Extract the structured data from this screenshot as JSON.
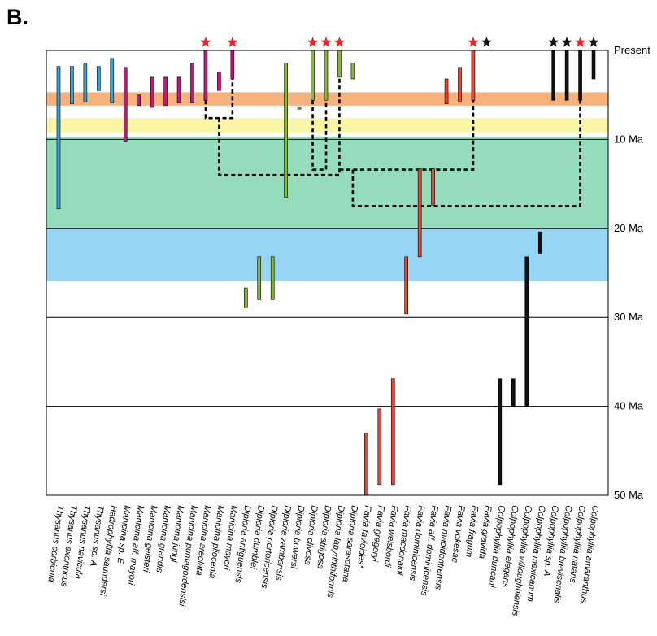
{
  "panel_label": "B.",
  "chart_data": {
    "type": "range-chart",
    "y_axis": {
      "unit": "Ma",
      "range": [
        0,
        50
      ],
      "ticks": [
        {
          "value": 0,
          "label": "Present"
        },
        {
          "value": 10,
          "label": "10 Ma"
        },
        {
          "value": 20,
          "label": "20 Ma"
        },
        {
          "value": 30,
          "label": "30 Ma"
        },
        {
          "value": 40,
          "label": "40 Ma"
        },
        {
          "value": 50,
          "label": "50 Ma"
        }
      ]
    },
    "bands": [
      {
        "from": 4.7,
        "to": 6.2,
        "color": "#f7b27b"
      },
      {
        "from": 7.6,
        "to": 9.2,
        "color": "#fbf6a6"
      },
      {
        "from": 9.7,
        "to": 19.9,
        "color": "#94dcbb"
      },
      {
        "from": 19.9,
        "to": 25.9,
        "color": "#96d6f4"
      }
    ],
    "colors": {
      "Thysanus": "#3fa1d6",
      "Hadrophyllia": "#3fa1d6",
      "Manicina": "#c8157e",
      "Diploria": "#86b540",
      "Favia": "#e24a33",
      "Colpophyllia": "#111111",
      "red_star": "#ee2222",
      "black_star": "#111111"
    },
    "taxa": [
      {
        "name": "Thysanus corbicula",
        "group": "Thysanus",
        "top": 1.8,
        "bottom": 17.8
      },
      {
        "name": "Thysanus exentricus",
        "group": "Thysanus",
        "top": 1.8,
        "bottom": 6.0
      },
      {
        "name": "Thysanus navicula",
        "group": "Thysanus",
        "top": 1.4,
        "bottom": 5.8
      },
      {
        "name": "Thysanus sp. A",
        "group": "Thysanus",
        "top": 1.8,
        "bottom": 4.5
      },
      {
        "name": "Hadrophyllia saundersi",
        "group": "Hadrophyllia",
        "top": 0.9,
        "bottom": 5.9
      },
      {
        "name": "Manicina sp. E",
        "group": "Manicina",
        "top": 1.9,
        "bottom": 10.2
      },
      {
        "name": "Manicina aff. mayori",
        "group": "Manicina",
        "top": 5.0,
        "bottom": 6.2
      },
      {
        "name": "Manicina geisteri",
        "group": "Manicina",
        "top": 3.0,
        "bottom": 6.4
      },
      {
        "name": "Manicina grandis",
        "group": "Manicina",
        "top": 3.0,
        "bottom": 6.2
      },
      {
        "name": "Manicina jungi",
        "group": "Manicina",
        "top": 3.0,
        "bottom": 5.9
      },
      {
        "name": "Manicina puntagordensisi",
        "group": "Manicina",
        "top": 1.4,
        "bottom": 5.9
      },
      {
        "name": "Manicina areolata",
        "group": "Manicina",
        "top": 0.0,
        "bottom": 5.6
      },
      {
        "name": "Manicina pliocenia",
        "group": "Manicina",
        "top": 2.4,
        "bottom": 4.5
      },
      {
        "name": "Manicina mayori",
        "group": "Manicina",
        "top": 0.0,
        "bottom": 3.2
      },
      {
        "name": "Diploria antiguensis",
        "group": "Diploria",
        "top": 26.7,
        "bottom": 28.9
      },
      {
        "name": "Diploria dumblei",
        "group": "Diploria",
        "top": 23.2,
        "bottom": 28.0
      },
      {
        "name": "Diploria portoricensis",
        "group": "Diploria",
        "top": 23.2,
        "bottom": 28.0
      },
      {
        "name": "Diploria zambensis",
        "group": "Diploria",
        "top": 1.4,
        "bottom": 16.5
      },
      {
        "name": "Diploria bowersi",
        "group": "Diploria",
        "top": 6.4,
        "bottom": 6.6
      },
      {
        "name": "Diploria clivosa",
        "group": "Diploria",
        "top": 0.0,
        "bottom": 5.6
      },
      {
        "name": "Diploria strigosa",
        "group": "Diploria",
        "top": 0.0,
        "bottom": 5.6
      },
      {
        "name": "Diploria labyrinthiformis",
        "group": "Diploria",
        "top": 0.0,
        "bottom": 3.0
      },
      {
        "name": "Diploria sarasotana",
        "group": "Diploria",
        "top": 1.4,
        "bottom": 3.2
      },
      {
        "name": "Favia favioides*",
        "group": "Favia",
        "top": 43.0,
        "bottom": 50.0
      },
      {
        "name": "Favia gregoryi",
        "group": "Favia",
        "top": 40.3,
        "bottom": 48.8
      },
      {
        "name": "Favia weisbordi",
        "group": "Favia",
        "top": 36.9,
        "bottom": 48.8
      },
      {
        "name": "Favia macdonaldi",
        "group": "Favia",
        "top": 23.2,
        "bottom": 29.6
      },
      {
        "name": "Favia dominicensis",
        "group": "Favia",
        "top": 13.3,
        "bottom": 23.2
      },
      {
        "name": "Favia aff. dominicensis",
        "group": "Favia",
        "top": 13.3,
        "bottom": 17.4
      },
      {
        "name": "Favia maoidentrensis",
        "group": "Favia",
        "top": 3.2,
        "bottom": 6.0
      },
      {
        "name": "Favia vokesae",
        "group": "Favia",
        "top": 1.9,
        "bottom": 5.8
      },
      {
        "name": "Favia fragum",
        "group": "Favia",
        "top": 0.0,
        "bottom": 5.6
      },
      {
        "name": "Favia gravida",
        "group": "Favia",
        "top": null,
        "bottom": null
      },
      {
        "name": "Colpophyllia duncani",
        "group": "Colpophyllia",
        "top": 36.9,
        "bottom": 48.8
      },
      {
        "name": "Colpophyllia elegans",
        "group": "Colpophyllia",
        "top": 36.9,
        "bottom": 40.0
      },
      {
        "name": "Colpophyllia willoughbiensis",
        "group": "Colpophyllia",
        "top": 23.2,
        "bottom": 40.0
      },
      {
        "name": "Colpophyllia mexicanum",
        "group": "Colpophyllia",
        "top": 20.4,
        "bottom": 22.8
      },
      {
        "name": "Colpophyllia sp. A",
        "group": "Colpophyllia",
        "top": 0.0,
        "bottom": 5.6
      },
      {
        "name": "Colpophyllia breviserialis",
        "group": "Colpophyllia",
        "top": 0.0,
        "bottom": 5.6
      },
      {
        "name": "Colpophyllia natans",
        "group": "Colpophyllia",
        "top": 0.0,
        "bottom": 5.6
      },
      {
        "name": "Colpophyllia amaranthus",
        "group": "Colpophyllia",
        "top": 0.0,
        "bottom": 3.2
      }
    ],
    "stars": [
      {
        "taxon": "Manicina areolata",
        "color": "red"
      },
      {
        "taxon": "Manicina mayori",
        "color": "red"
      },
      {
        "taxon": "Diploria clivosa",
        "color": "red"
      },
      {
        "taxon": "Diploria strigosa",
        "color": "red"
      },
      {
        "taxon": "Diploria labyrinthiformis",
        "color": "red"
      },
      {
        "taxon": "Favia fragum",
        "color": "red"
      },
      {
        "taxon": "Favia gravida",
        "color": "black"
      },
      {
        "taxon": "Colpophyllia sp. A",
        "color": "black"
      },
      {
        "taxon": "Colpophyllia breviserialis",
        "color": "black"
      },
      {
        "taxon": "Colpophyllia natans",
        "color": "red"
      },
      {
        "taxon": "Colpophyllia amaranthus",
        "color": "black"
      }
    ],
    "connectors": [
      {
        "between": [
          "Manicina areolata",
          "Manicina mayori"
        ],
        "join_age": 7.6,
        "from": [
          5.6,
          3.2
        ]
      },
      {
        "between": [
          "Manicina areolata+mayori",
          "Diploria labyrinthiformis"
        ],
        "join_age": 14.0
      },
      {
        "between": [
          "Diploria clivosa",
          "Diploria strigosa"
        ],
        "join_age": 13.4
      },
      {
        "between": [
          "Diploria labyrinthiformis",
          "Favia fragum"
        ],
        "join_age": 13.4
      },
      {
        "between": [
          "Diploria clade",
          "Colpophyllia natans"
        ],
        "join_age": 17.5
      }
    ]
  }
}
